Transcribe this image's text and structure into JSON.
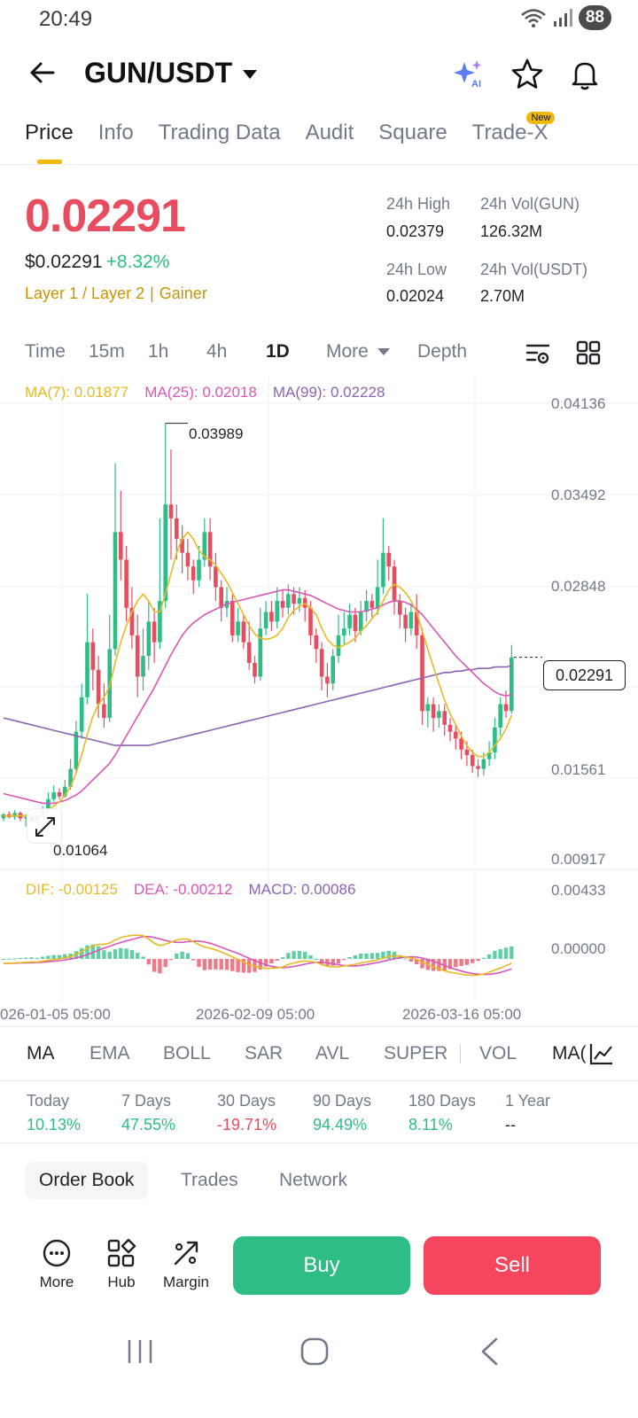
{
  "status_bar": {
    "time": "20:49",
    "battery": "88"
  },
  "header": {
    "pair": "GUN/USDT",
    "icons": [
      "back-arrow-icon",
      "ai-sparkle-icon",
      "star-icon",
      "bell-icon"
    ]
  },
  "tabs": [
    {
      "label": "Price",
      "active": true
    },
    {
      "label": "Info"
    },
    {
      "label": "Trading Data"
    },
    {
      "label": "Audit"
    },
    {
      "label": "Square"
    },
    {
      "label": "Trade-X",
      "badge": "New"
    }
  ],
  "price": {
    "last": "0.02291",
    "usd": "$0.02291",
    "change": "+8.32%",
    "tag1": "Layer 1 / Layer 2",
    "tag2": "Gainer"
  },
  "stats": {
    "high_label": "24h High",
    "high": "0.02379",
    "vol_gun_label": "24h Vol(GUN)",
    "vol_gun": "126.32M",
    "low_label": "24h Low",
    "low": "0.02024",
    "vol_usdt_label": "24h Vol(USDT)",
    "vol_usdt": "2.70M"
  },
  "timeframes": [
    {
      "label": "Time"
    },
    {
      "label": "15m"
    },
    {
      "label": "1h"
    },
    {
      "label": "4h"
    },
    {
      "label": "1D",
      "active": true
    },
    {
      "label": "More"
    },
    {
      "label": "Depth"
    }
  ],
  "ma_legend": {
    "ma7": "MA(7): 0.01877",
    "ma25": "MA(25): 0.02018",
    "ma99": "MA(99): 0.02228"
  },
  "macd_legend": {
    "dif": "DIF: -0.00125",
    "dea": "DEA: -0.00212",
    "macd": "MACD: 0.00086"
  },
  "colors": {
    "up": "#2ebd85",
    "down": "#e84c5f",
    "ma7": "#e8b921",
    "ma25": "#d957b6",
    "ma99": "#8c62b3",
    "accent": "#f0b90b"
  },
  "chart_data": {
    "type": "candlestick",
    "price_axis": [
      "0.04136",
      "0.03492",
      "0.02848",
      "0.02291",
      "0.01561",
      "0.00917"
    ],
    "current_price_label": "0.02291",
    "high_marker": "0.03989",
    "low_marker": "0.01064",
    "macd_axis": [
      "0.00433",
      "0.00000"
    ],
    "x_labels": [
      "026-01-05 05:00",
      "2026-02-09 05:00",
      "2026-03-16 05:00"
    ],
    "ylim": [
      0.00917,
      0.04136
    ],
    "candles": [
      [
        0.0112,
        0.0115,
        0.011,
        0.0116
      ],
      [
        0.0115,
        0.0113,
        0.0112,
        0.0117
      ],
      [
        0.0113,
        0.0116,
        0.0111,
        0.0118
      ],
      [
        0.0116,
        0.0112,
        0.011,
        0.0117
      ],
      [
        0.0112,
        0.0113,
        0.0106,
        0.0115
      ],
      [
        0.0113,
        0.011,
        0.0109,
        0.0115
      ],
      [
        0.011,
        0.0114,
        0.0108,
        0.0116
      ],
      [
        0.0114,
        0.0118,
        0.0112,
        0.0121
      ],
      [
        0.0118,
        0.0126,
        0.0116,
        0.0131
      ],
      [
        0.0126,
        0.0131,
        0.0124,
        0.0136
      ],
      [
        0.0131,
        0.0128,
        0.0126,
        0.0134
      ],
      [
        0.0128,
        0.0135,
        0.0127,
        0.014
      ],
      [
        0.0135,
        0.0148,
        0.0133,
        0.0155
      ],
      [
        0.0148,
        0.0175,
        0.0146,
        0.0183
      ],
      [
        0.0175,
        0.02,
        0.017,
        0.021
      ],
      [
        0.02,
        0.024,
        0.0195,
        0.0275
      ],
      [
        0.024,
        0.022,
        0.0205,
        0.025
      ],
      [
        0.022,
        0.0195,
        0.0185,
        0.023
      ],
      [
        0.0195,
        0.0185,
        0.0178,
        0.021
      ],
      [
        0.0185,
        0.0235,
        0.0182,
        0.026
      ],
      [
        0.0235,
        0.032,
        0.023,
        0.037
      ],
      [
        0.032,
        0.03,
        0.0285,
        0.035
      ],
      [
        0.03,
        0.0265,
        0.0255,
        0.031
      ],
      [
        0.0265,
        0.0245,
        0.0235,
        0.028
      ],
      [
        0.0245,
        0.0215,
        0.02,
        0.026
      ],
      [
        0.0215,
        0.023,
        0.0205,
        0.025
      ],
      [
        0.023,
        0.0255,
        0.022,
        0.027
      ],
      [
        0.0255,
        0.024,
        0.0225,
        0.0265
      ],
      [
        0.024,
        0.027,
        0.0235,
        0.033
      ],
      [
        0.027,
        0.034,
        0.0265,
        0.0399
      ],
      [
        0.034,
        0.033,
        0.03,
        0.038
      ],
      [
        0.033,
        0.0315,
        0.03,
        0.034
      ],
      [
        0.0315,
        0.0305,
        0.029,
        0.0325
      ],
      [
        0.0305,
        0.0295,
        0.0285,
        0.0315
      ],
      [
        0.0295,
        0.0285,
        0.0275,
        0.03
      ],
      [
        0.0285,
        0.03,
        0.028,
        0.031
      ],
      [
        0.03,
        0.032,
        0.0295,
        0.033
      ],
      [
        0.032,
        0.0295,
        0.0285,
        0.033
      ],
      [
        0.0295,
        0.028,
        0.027,
        0.0305
      ],
      [
        0.028,
        0.0265,
        0.0255,
        0.0285
      ],
      [
        0.0265,
        0.027,
        0.0258,
        0.028
      ],
      [
        0.027,
        0.0245,
        0.024,
        0.0275
      ],
      [
        0.0245,
        0.0255,
        0.024,
        0.0265
      ],
      [
        0.0255,
        0.024,
        0.0235,
        0.026
      ],
      [
        0.024,
        0.0225,
        0.022,
        0.0255
      ],
      [
        0.0225,
        0.0215,
        0.021,
        0.023
      ],
      [
        0.0215,
        0.025,
        0.0212,
        0.0265
      ],
      [
        0.025,
        0.0262,
        0.0245,
        0.027
      ],
      [
        0.0262,
        0.0255,
        0.0248,
        0.027
      ],
      [
        0.0255,
        0.027,
        0.025,
        0.028
      ],
      [
        0.027,
        0.0265,
        0.0258,
        0.0278
      ],
      [
        0.0265,
        0.0275,
        0.026,
        0.0282
      ],
      [
        0.0275,
        0.0268,
        0.026,
        0.028
      ],
      [
        0.0268,
        0.0272,
        0.0262,
        0.028
      ],
      [
        0.0272,
        0.0265,
        0.0255,
        0.0278
      ],
      [
        0.0265,
        0.0245,
        0.0238,
        0.027
      ],
      [
        0.0245,
        0.0235,
        0.0225,
        0.025
      ],
      [
        0.0235,
        0.0215,
        0.0205,
        0.024
      ],
      [
        0.0215,
        0.021,
        0.02,
        0.0225
      ],
      [
        0.021,
        0.023,
        0.0205,
        0.0235
      ],
      [
        0.023,
        0.0245,
        0.0225,
        0.026
      ],
      [
        0.0245,
        0.025,
        0.0238,
        0.0262
      ],
      [
        0.025,
        0.026,
        0.0245,
        0.0268
      ],
      [
        0.026,
        0.0248,
        0.024,
        0.0265
      ],
      [
        0.0248,
        0.0262,
        0.0245,
        0.027
      ],
      [
        0.0262,
        0.027,
        0.0255,
        0.0278
      ],
      [
        0.027,
        0.0265,
        0.0258,
        0.0275
      ],
      [
        0.0265,
        0.028,
        0.026,
        0.03
      ],
      [
        0.028,
        0.0305,
        0.0275,
        0.033
      ],
      [
        0.0305,
        0.0295,
        0.0285,
        0.031
      ],
      [
        0.0295,
        0.027,
        0.026,
        0.03
      ],
      [
        0.027,
        0.026,
        0.025,
        0.0275
      ],
      [
        0.026,
        0.025,
        0.024,
        0.0265
      ],
      [
        0.025,
        0.0262,
        0.0245,
        0.0268
      ],
      [
        0.0262,
        0.0245,
        0.0235,
        0.0275
      ],
      [
        0.0245,
        0.019,
        0.018,
        0.025
      ],
      [
        0.019,
        0.0195,
        0.0178,
        0.02
      ],
      [
        0.0195,
        0.0185,
        0.0175,
        0.02
      ],
      [
        0.0185,
        0.019,
        0.0178,
        0.0195
      ],
      [
        0.019,
        0.018,
        0.0172,
        0.0195
      ],
      [
        0.018,
        0.0175,
        0.0168,
        0.0185
      ],
      [
        0.0175,
        0.017,
        0.0162,
        0.018
      ],
      [
        0.017,
        0.0162,
        0.0155,
        0.0175
      ],
      [
        0.0162,
        0.0158,
        0.015,
        0.0168
      ],
      [
        0.0158,
        0.015,
        0.0145,
        0.0162
      ],
      [
        0.015,
        0.0148,
        0.0142,
        0.0155
      ],
      [
        0.0148,
        0.0155,
        0.0143,
        0.016
      ],
      [
        0.0155,
        0.016,
        0.015,
        0.0168
      ],
      [
        0.016,
        0.0178,
        0.0155,
        0.0185
      ],
      [
        0.0178,
        0.0195,
        0.0172,
        0.02
      ],
      [
        0.0195,
        0.019,
        0.0185,
        0.0205
      ],
      [
        0.019,
        0.0229,
        0.0188,
        0.0238
      ]
    ],
    "ma7": [
      0.0114,
      0.0114,
      0.0114,
      0.0114,
      0.0114,
      0.0114,
      0.0113,
      0.0115,
      0.0118,
      0.0121,
      0.0124,
      0.0129,
      0.0135,
      0.0145,
      0.0158,
      0.0173,
      0.0186,
      0.0195,
      0.02,
      0.0208,
      0.0225,
      0.024,
      0.0252,
      0.0262,
      0.027,
      0.0275,
      0.027,
      0.0262,
      0.0262,
      0.0275,
      0.029,
      0.0305,
      0.0315,
      0.032,
      0.0315,
      0.0307,
      0.0302,
      0.03,
      0.0296,
      0.029,
      0.0284,
      0.0276,
      0.0268,
      0.026,
      0.0252,
      0.0246,
      0.0243,
      0.0242,
      0.0243,
      0.0245,
      0.025,
      0.0258,
      0.0263,
      0.0266,
      0.0268,
      0.0265,
      0.026,
      0.025,
      0.0242,
      0.0238,
      0.0236,
      0.0238,
      0.024,
      0.0243,
      0.0248,
      0.0252,
      0.0257,
      0.0262,
      0.027,
      0.0278,
      0.0282,
      0.028,
      0.0276,
      0.027,
      0.0262,
      0.0248,
      0.0235,
      0.0222,
      0.021,
      0.0198,
      0.0188,
      0.018,
      0.0172,
      0.0165,
      0.016,
      0.0157,
      0.0157,
      0.016,
      0.0165,
      0.017,
      0.0177,
      0.0187
    ],
    "ma25": [
      0.013,
      0.0129,
      0.0128,
      0.0127,
      0.0126,
      0.0125,
      0.0124,
      0.0123,
      0.0123,
      0.0123,
      0.0124,
      0.0125,
      0.0127,
      0.0129,
      0.0132,
      0.0136,
      0.014,
      0.0144,
      0.0148,
      0.0152,
      0.0158,
      0.0165,
      0.0172,
      0.0179,
      0.0186,
      0.0193,
      0.02,
      0.0207,
      0.0215,
      0.0223,
      0.0231,
      0.0238,
      0.0245,
      0.025,
      0.0254,
      0.0257,
      0.026,
      0.0262,
      0.0264,
      0.0266,
      0.0268,
      0.0269,
      0.027,
      0.0271,
      0.0272,
      0.0273,
      0.0274,
      0.0275,
      0.0276,
      0.0277,
      0.0278,
      0.0278,
      0.0277,
      0.0276,
      0.0275,
      0.0274,
      0.0272,
      0.027,
      0.0268,
      0.0266,
      0.0264,
      0.0263,
      0.0262,
      0.0262,
      0.0262,
      0.0263,
      0.0264,
      0.0265,
      0.0267,
      0.0269,
      0.027,
      0.027,
      0.0269,
      0.0267,
      0.0264,
      0.026,
      0.0255,
      0.025,
      0.0245,
      0.024,
      0.0235,
      0.023,
      0.0226,
      0.0222,
      0.0218,
      0.0214,
      0.021,
      0.0207,
      0.0204,
      0.0202,
      0.0201,
      0.0202
    ],
    "ma99": [
      0.0185,
      0.0184,
      0.0183,
      0.0182,
      0.0181,
      0.018,
      0.0179,
      0.0178,
      0.0177,
      0.0176,
      0.0175,
      0.0174,
      0.0173,
      0.0172,
      0.0171,
      0.017,
      0.0169,
      0.0168,
      0.0167,
      0.0166,
      0.0165,
      0.0165,
      0.0165,
      0.0165,
      0.0165,
      0.0165,
      0.0165,
      0.0166,
      0.0167,
      0.0168,
      0.0169,
      0.017,
      0.0171,
      0.0172,
      0.0173,
      0.0174,
      0.0175,
      0.0176,
      0.0177,
      0.0178,
      0.0179,
      0.018,
      0.0181,
      0.0182,
      0.0183,
      0.0184,
      0.0185,
      0.0186,
      0.0187,
      0.0188,
      0.0189,
      0.019,
      0.0191,
      0.0192,
      0.0193,
      0.0194,
      0.0195,
      0.0196,
      0.0197,
      0.0198,
      0.0199,
      0.02,
      0.0201,
      0.0202,
      0.0203,
      0.0204,
      0.0205,
      0.0206,
      0.0207,
      0.0208,
      0.0209,
      0.021,
      0.0211,
      0.0212,
      0.0213,
      0.0214,
      0.0215,
      0.0216,
      0.0217,
      0.0218,
      0.0218,
      0.0219,
      0.0219,
      0.022,
      0.022,
      0.0221,
      0.0221,
      0.0221,
      0.0222,
      0.0222,
      0.0222,
      0.0223
    ]
  },
  "indicator_tabs": [
    "MA",
    "EMA",
    "BOLL",
    "SAR",
    "AVL",
    "SUPER",
    "VOL",
    "MA("
  ],
  "performance": [
    {
      "label": "Today",
      "value": "10.13%",
      "dir": "up"
    },
    {
      "label": "7 Days",
      "value": "47.55%",
      "dir": "up"
    },
    {
      "label": "30 Days",
      "value": "-19.71%",
      "dir": "down"
    },
    {
      "label": "90 Days",
      "value": "94.49%",
      "dir": "up"
    },
    {
      "label": "180 Days",
      "value": "8.11%",
      "dir": "up"
    },
    {
      "label": "1 Year",
      "value": "--",
      "dir": "none"
    }
  ],
  "book_tabs": [
    {
      "label": "Order Book",
      "active": true
    },
    {
      "label": "Trades"
    },
    {
      "label": "Network"
    }
  ],
  "actions": {
    "more": "More",
    "hub": "Hub",
    "margin": "Margin",
    "buy": "Buy",
    "sell": "Sell"
  }
}
